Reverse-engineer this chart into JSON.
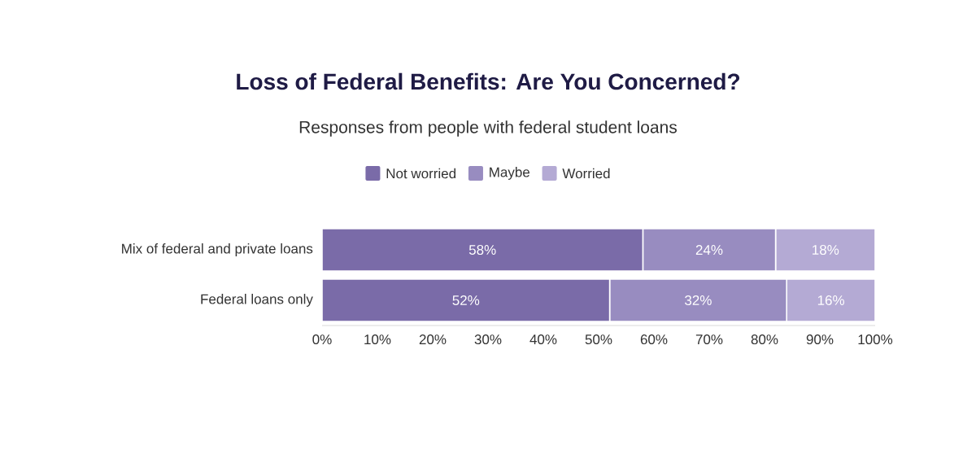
{
  "chart_data": {
    "type": "bar",
    "orientation": "horizontal",
    "stacked": true,
    "title": "Loss of Federal Benefits: Are You Concerned?",
    "subtitle": "Responses from people with federal student loans",
    "categories": [
      "Mix of federal and private loans",
      "Federal loans only"
    ],
    "series": [
      {
        "name": "Not worried",
        "color": "#7a6ba8",
        "values": [
          58,
          52
        ],
        "value_labels": [
          "58%",
          "52%"
        ]
      },
      {
        "name": "Maybe",
        "color": "#988cc0",
        "values": [
          24,
          32
        ],
        "value_labels": [
          "24%",
          "32%"
        ]
      },
      {
        "name": "Worried",
        "color": "#b4aad4",
        "values": [
          18,
          16
        ],
        "value_labels": [
          "18%",
          "16%"
        ]
      }
    ],
    "xlim": [
      0,
      100
    ],
    "xticks": [
      {
        "value": 0,
        "label": "0%"
      },
      {
        "value": 10,
        "label": "10%"
      },
      {
        "value": 20,
        "label": "20%"
      },
      {
        "value": 30,
        "label": "30%"
      },
      {
        "value": 40,
        "label": "40%"
      },
      {
        "value": 50,
        "label": "50%"
      },
      {
        "value": 60,
        "label": "60%"
      },
      {
        "value": 70,
        "label": "70%"
      },
      {
        "value": 80,
        "label": "80%"
      },
      {
        "value": 90,
        "label": "90%"
      },
      {
        "value": 100,
        "label": "100%"
      }
    ],
    "legend": "top",
    "grid": false
  }
}
